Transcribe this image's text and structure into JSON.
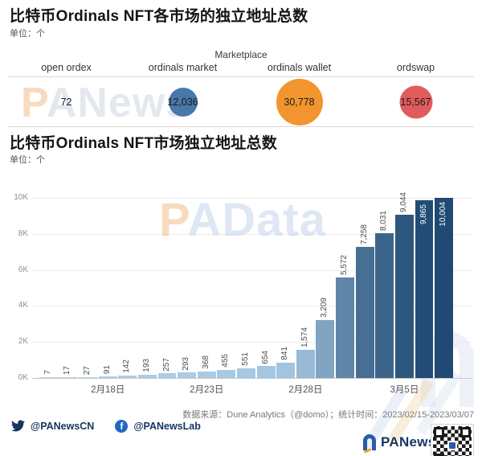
{
  "bubble_section": {
    "title": "比特币Ordinals NFT各市场的独立地址总数",
    "unit": "单位：个",
    "group_label": "Marketplace",
    "watermark": "PANews"
  },
  "bar_section": {
    "title": "比特币Ordinals NFT市场独立地址总数",
    "unit": "单位：个",
    "watermark": "PAData"
  },
  "chart_data": [
    {
      "type": "bubble",
      "title": "比特币Ordinals NFT各市场的独立地址总数",
      "unit": "个",
      "group_label": "Marketplace",
      "categories": [
        "open ordex",
        "ordinals market",
        "ordinals wallet",
        "ordswap"
      ],
      "values": [
        72,
        12036,
        30778,
        15567
      ],
      "value_labels": [
        "72",
        "12,036",
        "30,778",
        "15,567"
      ],
      "colors": [
        "#4878a8",
        "#4878a8",
        "#f2952f",
        "#e05c5c"
      ]
    },
    {
      "type": "bar",
      "title": "比特币Ordinals NFT市场独立地址总数",
      "unit": "个",
      "period": "2023/02/15-2023/03/07",
      "values": [
        7,
        17,
        27,
        91,
        142,
        193,
        257,
        293,
        368,
        455,
        551,
        654,
        841,
        1574,
        3209,
        5572,
        7258,
        8031,
        9044,
        9865,
        10004
      ],
      "value_labels": [
        "7",
        "17",
        "27",
        "91",
        "142",
        "193",
        "257",
        "293",
        "368",
        "455",
        "551",
        "654",
        "841",
        "1,574",
        "3,209",
        "5,572",
        "7,258",
        "8,031",
        "9,044",
        "9,865",
        "10,004"
      ],
      "x_ticks": [
        {
          "index": 3,
          "label": "2月18日"
        },
        {
          "index": 8,
          "label": "2月23日"
        },
        {
          "index": 13,
          "label": "2月28日"
        },
        {
          "index": 18,
          "label": "3月5日"
        }
      ],
      "y_ticks": [
        {
          "value": 0,
          "label": "0K"
        },
        {
          "value": 2000,
          "label": "2K"
        },
        {
          "value": 4000,
          "label": "4K"
        },
        {
          "value": 6000,
          "label": "6K"
        },
        {
          "value": 8000,
          "label": "8K"
        },
        {
          "value": 10000,
          "label": "10K"
        }
      ],
      "ylim": [
        0,
        10000
      ],
      "grid": true,
      "bar_color_scale": {
        "min": "#aecfe8",
        "max": "#204a73"
      }
    }
  ],
  "footer": {
    "source_line": "数据来源：Dune Analytics（@domo）；统计时间：2023/02/15-2023/03/07",
    "twitter_handle": "@PANewsCN",
    "facebook_handle": "@PANewsLab",
    "brand": "PANews"
  }
}
